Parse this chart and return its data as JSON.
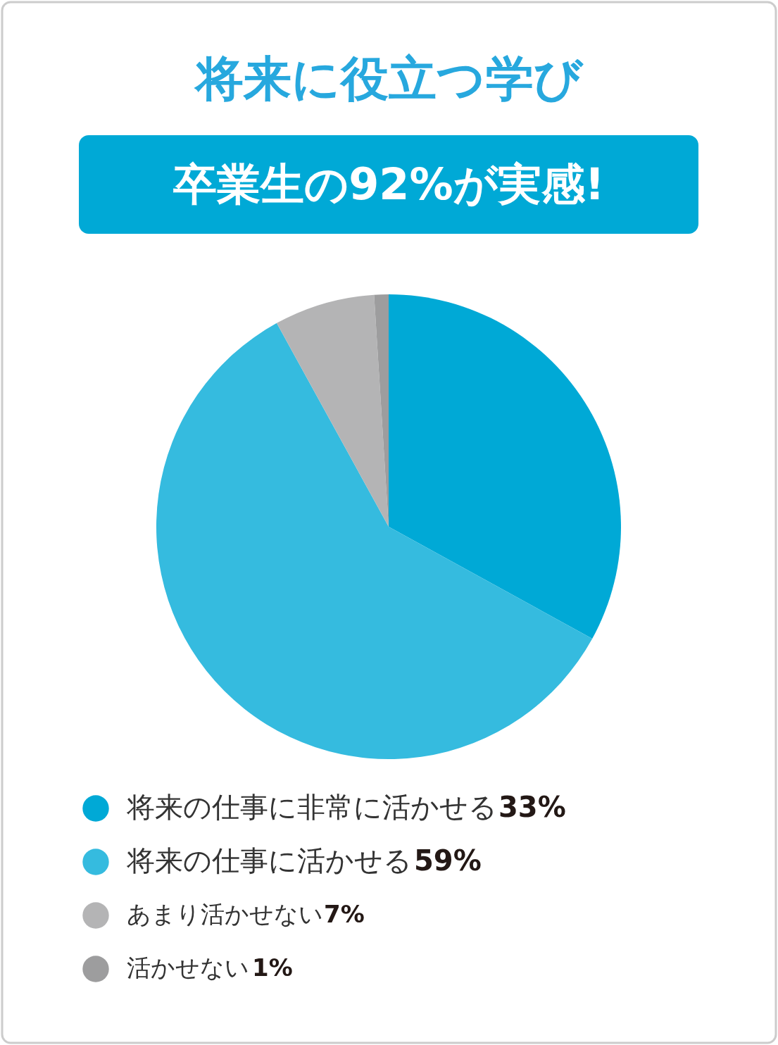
{
  "chart_data": {
    "type": "pie",
    "title": "将来に役立つ学び",
    "subtitle": "卒業生の92%が実感!",
    "categories": [
      "将来の仕事に非常に活かせる",
      "将来の仕事に活かせる",
      "あまり活かせない",
      "活かせない"
    ],
    "values": [
      33,
      59,
      7,
      1
    ],
    "value_labels": [
      "33%",
      "59%",
      "7%",
      "1%"
    ],
    "colors": [
      "#00a9d6",
      "#35bbdf",
      "#b4b4b5",
      "#9d9d9e"
    ],
    "legend": "bottom"
  }
}
